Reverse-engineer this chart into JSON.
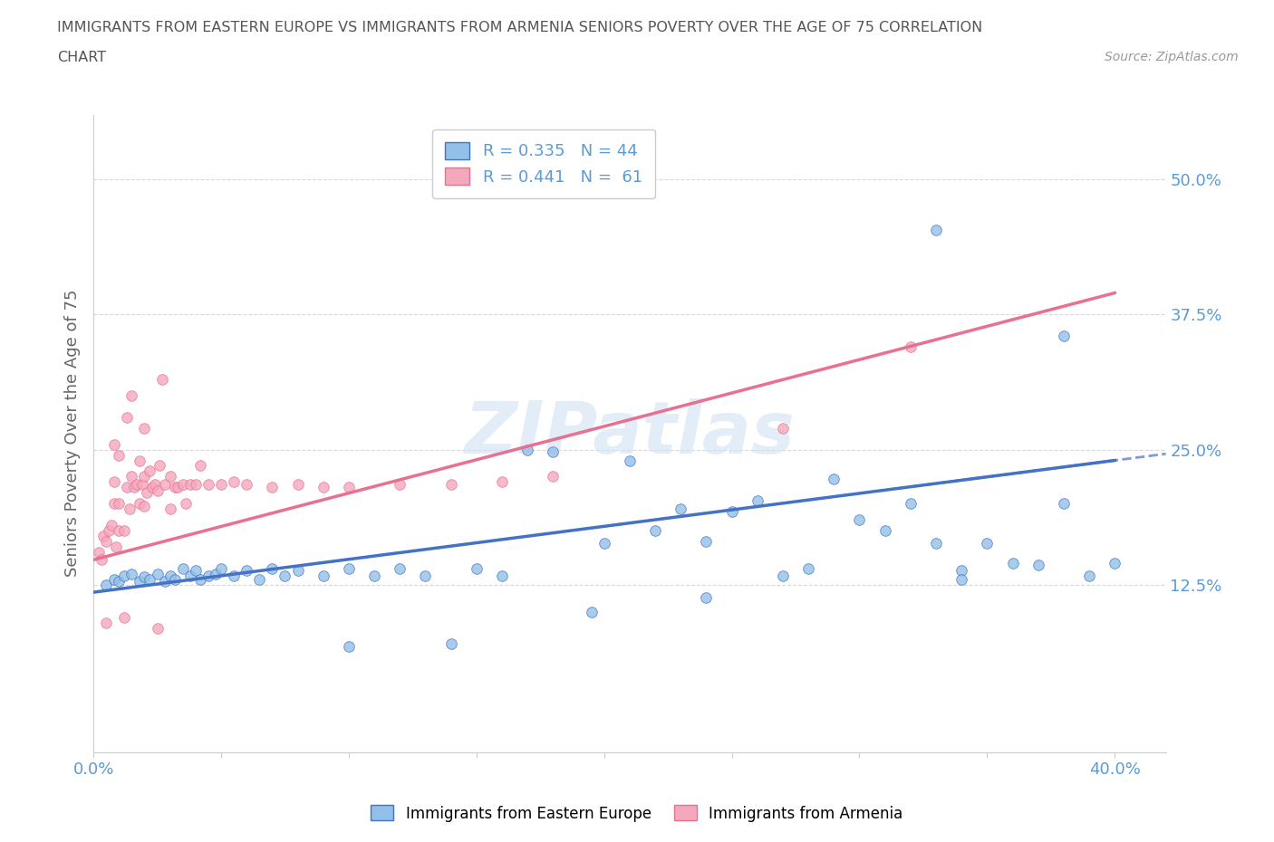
{
  "title_line1": "IMMIGRANTS FROM EASTERN EUROPE VS IMMIGRANTS FROM ARMENIA SENIORS POVERTY OVER THE AGE OF 75 CORRELATION",
  "title_line2": "CHART",
  "source_text": "Source: ZipAtlas.com",
  "ylabel": "Seniors Poverty Over the Age of 75",
  "yticks_labels": [
    "12.5%",
    "25.0%",
    "37.5%",
    "50.0%"
  ],
  "ytick_vals": [
    0.125,
    0.25,
    0.375,
    0.5
  ],
  "xticks_labels": [
    "0.0%",
    "",
    "",
    "",
    "",
    "",
    "",
    "",
    "40.0%"
  ],
  "xtick_vals": [
    0.0,
    0.05,
    0.1,
    0.15,
    0.2,
    0.25,
    0.3,
    0.35,
    0.4
  ],
  "xrange": [
    0.0,
    0.42
  ],
  "yrange": [
    -0.03,
    0.56
  ],
  "blue_color": "#92C0E8",
  "pink_color": "#F4A8BC",
  "blue_line_color": "#4472C4",
  "pink_line_color": "#E87090",
  "blue_scatter": [
    [
      0.005,
      0.125
    ],
    [
      0.008,
      0.13
    ],
    [
      0.01,
      0.128
    ],
    [
      0.012,
      0.133
    ],
    [
      0.015,
      0.135
    ],
    [
      0.018,
      0.128
    ],
    [
      0.02,
      0.132
    ],
    [
      0.022,
      0.13
    ],
    [
      0.025,
      0.135
    ],
    [
      0.028,
      0.128
    ],
    [
      0.03,
      0.133
    ],
    [
      0.032,
      0.13
    ],
    [
      0.035,
      0.14
    ],
    [
      0.038,
      0.133
    ],
    [
      0.04,
      0.138
    ],
    [
      0.042,
      0.13
    ],
    [
      0.045,
      0.133
    ],
    [
      0.048,
      0.135
    ],
    [
      0.05,
      0.14
    ],
    [
      0.055,
      0.133
    ],
    [
      0.06,
      0.138
    ],
    [
      0.065,
      0.13
    ],
    [
      0.07,
      0.14
    ],
    [
      0.075,
      0.133
    ],
    [
      0.08,
      0.138
    ],
    [
      0.09,
      0.133
    ],
    [
      0.1,
      0.14
    ],
    [
      0.11,
      0.133
    ],
    [
      0.12,
      0.14
    ],
    [
      0.13,
      0.133
    ],
    [
      0.15,
      0.14
    ],
    [
      0.16,
      0.133
    ],
    [
      0.17,
      0.25
    ],
    [
      0.18,
      0.248
    ],
    [
      0.2,
      0.163
    ],
    [
      0.21,
      0.24
    ],
    [
      0.22,
      0.175
    ],
    [
      0.23,
      0.195
    ],
    [
      0.24,
      0.165
    ],
    [
      0.25,
      0.193
    ],
    [
      0.26,
      0.203
    ],
    [
      0.27,
      0.133
    ],
    [
      0.29,
      0.223
    ],
    [
      0.3,
      0.185
    ],
    [
      0.31,
      0.175
    ],
    [
      0.32,
      0.2
    ],
    [
      0.33,
      0.163
    ],
    [
      0.34,
      0.138
    ],
    [
      0.35,
      0.163
    ],
    [
      0.36,
      0.145
    ],
    [
      0.37,
      0.143
    ],
    [
      0.38,
      0.2
    ],
    [
      0.24,
      0.113
    ],
    [
      0.28,
      0.14
    ],
    [
      0.34,
      0.13
    ],
    [
      0.38,
      0.355
    ],
    [
      0.39,
      0.133
    ],
    [
      0.4,
      0.145
    ],
    [
      0.33,
      0.453
    ],
    [
      0.1,
      0.068
    ],
    [
      0.14,
      0.07
    ],
    [
      0.195,
      0.1
    ]
  ],
  "pink_scatter": [
    [
      0.002,
      0.155
    ],
    [
      0.003,
      0.148
    ],
    [
      0.004,
      0.17
    ],
    [
      0.005,
      0.165
    ],
    [
      0.006,
      0.175
    ],
    [
      0.007,
      0.18
    ],
    [
      0.008,
      0.2
    ],
    [
      0.008,
      0.22
    ],
    [
      0.008,
      0.255
    ],
    [
      0.009,
      0.16
    ],
    [
      0.01,
      0.175
    ],
    [
      0.01,
      0.2
    ],
    [
      0.01,
      0.245
    ],
    [
      0.012,
      0.175
    ],
    [
      0.013,
      0.215
    ],
    [
      0.013,
      0.28
    ],
    [
      0.014,
      0.195
    ],
    [
      0.015,
      0.225
    ],
    [
      0.015,
      0.3
    ],
    [
      0.016,
      0.215
    ],
    [
      0.017,
      0.218
    ],
    [
      0.018,
      0.2
    ],
    [
      0.018,
      0.24
    ],
    [
      0.019,
      0.218
    ],
    [
      0.02,
      0.198
    ],
    [
      0.02,
      0.225
    ],
    [
      0.02,
      0.27
    ],
    [
      0.021,
      0.21
    ],
    [
      0.022,
      0.23
    ],
    [
      0.023,
      0.215
    ],
    [
      0.024,
      0.218
    ],
    [
      0.025,
      0.212
    ],
    [
      0.026,
      0.235
    ],
    [
      0.027,
      0.315
    ],
    [
      0.028,
      0.218
    ],
    [
      0.03,
      0.195
    ],
    [
      0.03,
      0.225
    ],
    [
      0.032,
      0.215
    ],
    [
      0.033,
      0.215
    ],
    [
      0.035,
      0.218
    ],
    [
      0.036,
      0.2
    ],
    [
      0.038,
      0.218
    ],
    [
      0.04,
      0.218
    ],
    [
      0.042,
      0.235
    ],
    [
      0.045,
      0.218
    ],
    [
      0.05,
      0.218
    ],
    [
      0.055,
      0.22
    ],
    [
      0.06,
      0.218
    ],
    [
      0.07,
      0.215
    ],
    [
      0.08,
      0.218
    ],
    [
      0.09,
      0.215
    ],
    [
      0.1,
      0.215
    ],
    [
      0.12,
      0.218
    ],
    [
      0.14,
      0.218
    ],
    [
      0.16,
      0.22
    ],
    [
      0.18,
      0.225
    ],
    [
      0.27,
      0.27
    ],
    [
      0.32,
      0.345
    ],
    [
      0.005,
      0.09
    ],
    [
      0.025,
      0.085
    ],
    [
      0.012,
      0.095
    ]
  ],
  "blue_trend": [
    0.0,
    0.4,
    0.118,
    0.24
  ],
  "pink_trend": [
    0.0,
    0.4,
    0.148,
    0.395
  ],
  "background_color": "#ffffff",
  "grid_color": "#d8d8d8",
  "title_color": "#555555",
  "tick_label_color": "#5B9BD5",
  "ylabel_color": "#666666",
  "watermark_color": "#cfe2f3"
}
